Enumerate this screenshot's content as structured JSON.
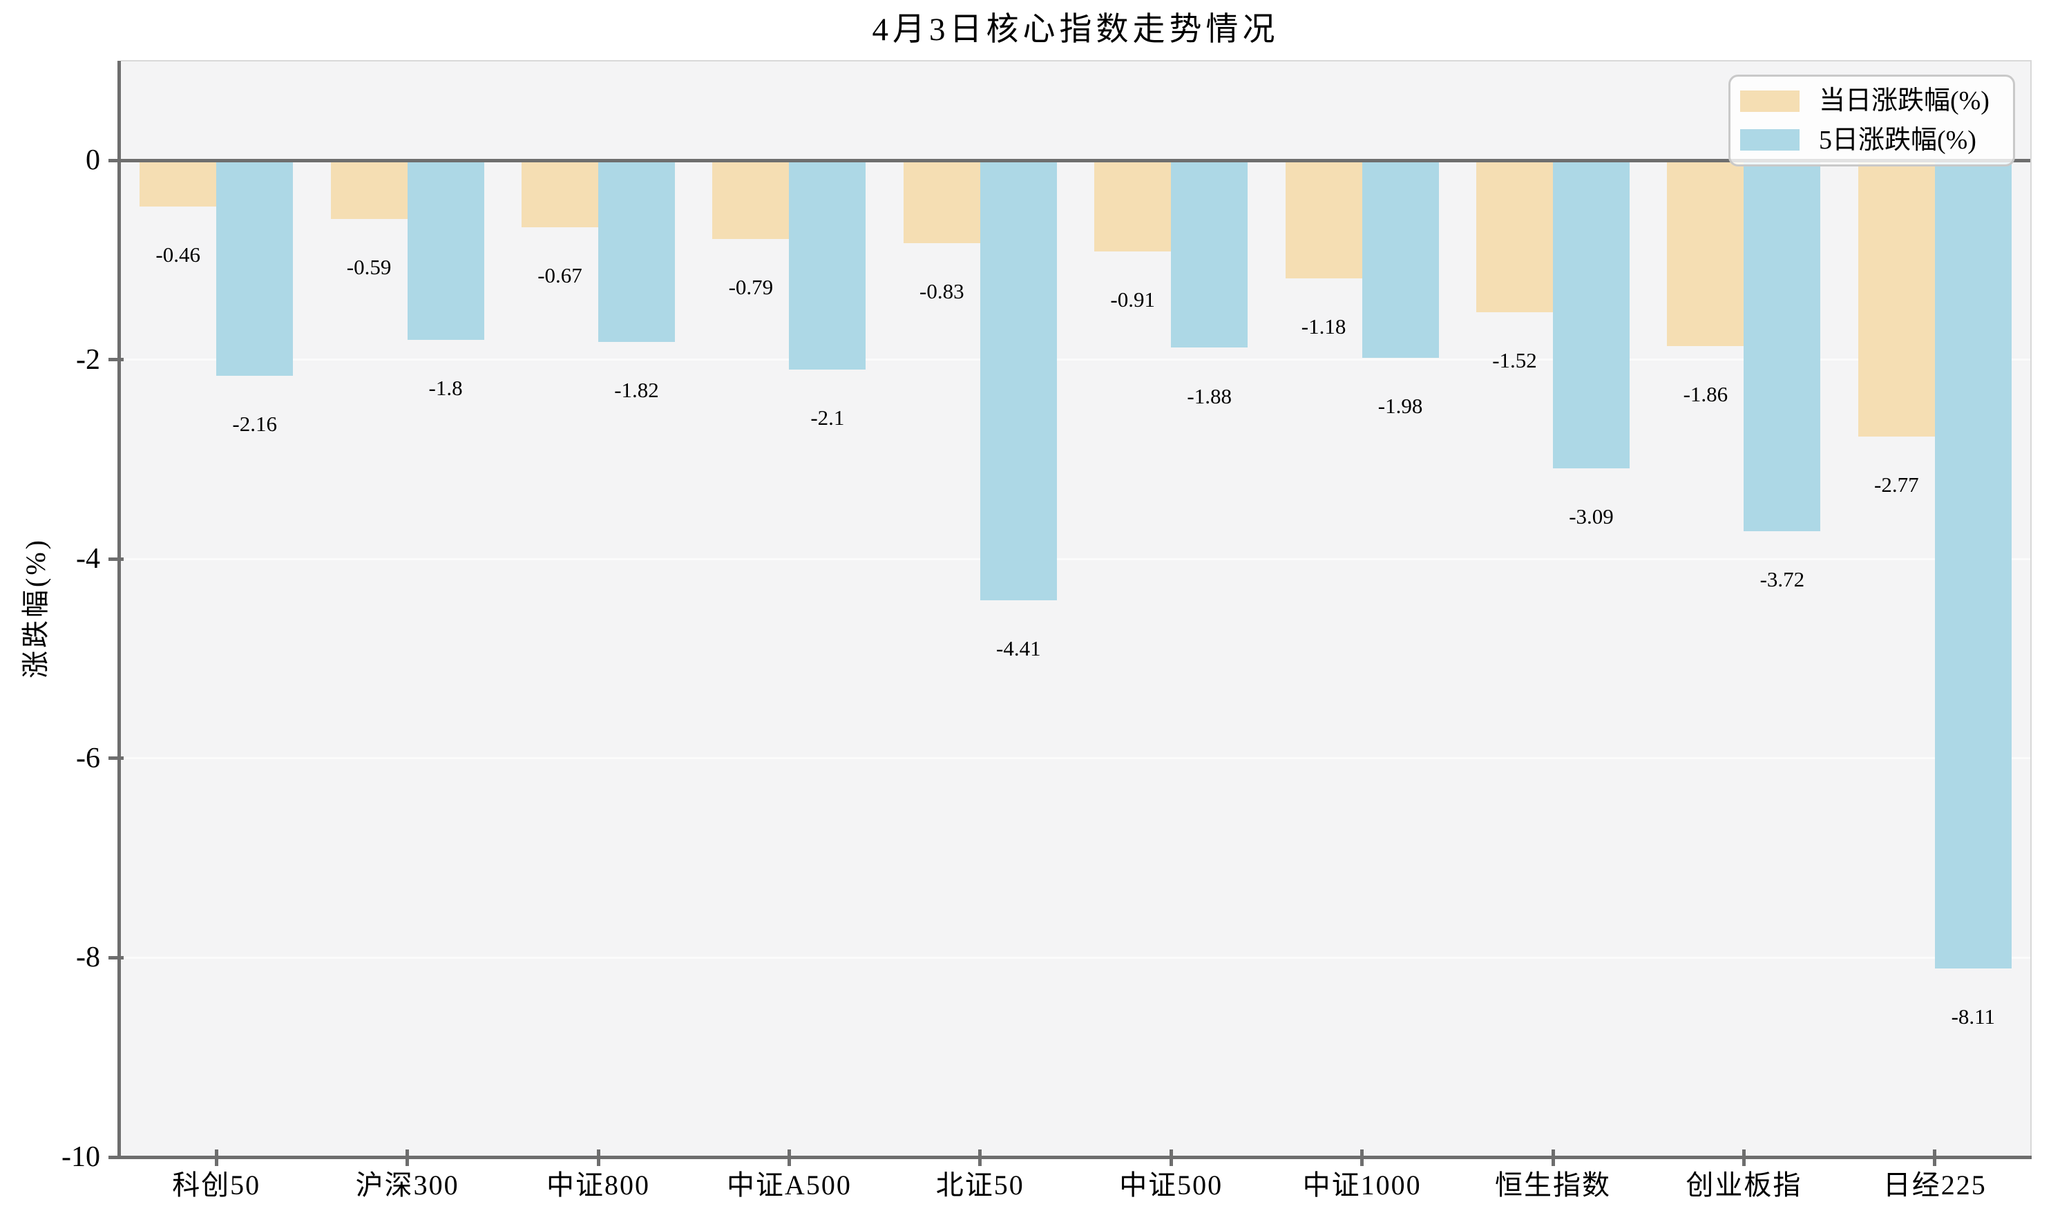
{
  "title": "4月3日核心指数走势情况",
  "chart_data": {
    "type": "bar",
    "title": "4月3日核心指数走势情况",
    "xlabel": "",
    "ylabel": "涨跌幅(%)",
    "ylim": [
      -10,
      1
    ],
    "yticks": [
      0,
      -2,
      -4,
      -6,
      -8,
      -10
    ],
    "grid": "horizontal-white-on-gray",
    "legend_position": "upper right",
    "categories": [
      "科创50",
      "沪深300",
      "中证800",
      "中证A500",
      "北证50",
      "中证500",
      "中证1000",
      "恒生指数",
      "创业板指",
      "日经225"
    ],
    "series": [
      {
        "name": "当日涨跌幅(%)",
        "color": "#F5DEB3",
        "values": [
          -0.46,
          -0.59,
          -0.67,
          -0.79,
          -0.83,
          -0.91,
          -1.18,
          -1.52,
          -1.86,
          -2.77
        ]
      },
      {
        "name": "5日涨跌幅(%)",
        "color": "#ADD8E6",
        "values": [
          -2.16,
          -1.8,
          -1.82,
          -2.1,
          -4.41,
          -1.88,
          -1.98,
          -3.09,
          -3.72,
          -8.11
        ]
      }
    ]
  },
  "colors": {
    "figure_bg": "#ffffff",
    "plot_bg": "#f4f4f5",
    "gridline": "#fbfbfb",
    "axis": "#6e6e6e",
    "light_spine": "#d8d8d8",
    "text": "#000000",
    "legend_border": "#c9c9c9"
  }
}
